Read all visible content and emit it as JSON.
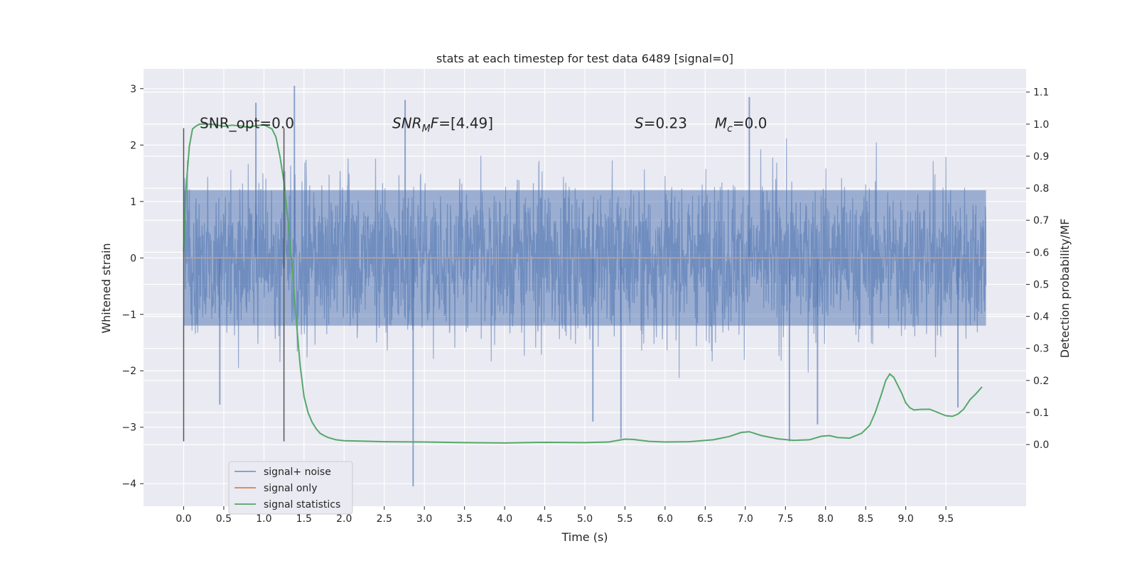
{
  "chart_data": {
    "type": "line",
    "title": "stats at each timestep for test data 6489 [signal=0]",
    "xlabel": "Time (s)",
    "ylabel": "Whitened strain",
    "y2label": "Detection probability/MF",
    "xlim": [
      -0.5,
      10.5
    ],
    "ylim": [
      -4.4,
      3.35
    ],
    "y2lim": [
      -0.1925,
      1.1725
    ],
    "x_ticks": [
      0.0,
      0.5,
      1.0,
      1.5,
      2.0,
      2.5,
      3.0,
      3.5,
      4.0,
      4.5,
      5.0,
      5.5,
      6.0,
      6.5,
      7.0,
      7.5,
      8.0,
      8.5,
      9.0,
      9.5
    ],
    "x_tick_labels": [
      "0.0",
      "0.5",
      "1.0",
      "1.5",
      "2.0",
      "2.5",
      "3.0",
      "3.5",
      "4.0",
      "4.5",
      "5.0",
      "5.5",
      "6.0",
      "6.5",
      "7.0",
      "7.5",
      "8.0",
      "8.5",
      "9.0",
      "9.5"
    ],
    "y_ticks": [
      -4,
      -3,
      -2,
      -1,
      0,
      1,
      2,
      3
    ],
    "y_tick_labels": [
      "−4",
      "−3",
      "−2",
      "−1",
      "0",
      "1",
      "2",
      "3"
    ],
    "y2_ticks": [
      0.0,
      0.1,
      0.2,
      0.3,
      0.4,
      0.5,
      0.6,
      0.7,
      0.8,
      0.9,
      1.0,
      1.1
    ],
    "y2_tick_labels": [
      "0.0",
      "0.1",
      "0.2",
      "0.3",
      "0.4",
      "0.5",
      "0.6",
      "0.7",
      "0.8",
      "0.9",
      "1.0",
      "1.1"
    ],
    "grid": true,
    "legend_position": "lower-left",
    "annotations": [
      {
        "segments": [
          {
            "t": "SNR_opt=0.0",
            "style": "normal"
          }
        ],
        "x": 0.2,
        "y": 2.3
      },
      {
        "segments": [
          {
            "t": "SNR",
            "style": "italic"
          },
          {
            "t": "M",
            "style": "italic-sub"
          },
          {
            "t": "F",
            "style": "italic"
          },
          {
            "t": "=[4.49]",
            "style": "normal"
          }
        ],
        "x": 2.6,
        "y": 2.3
      },
      {
        "segments": [
          {
            "t": "S",
            "style": "italic"
          },
          {
            "t": "=0.23",
            "style": "normal"
          }
        ],
        "x": 5.62,
        "y": 2.3
      },
      {
        "segments": [
          {
            "t": "M",
            "style": "italic"
          },
          {
            "t": "c",
            "style": "italic-sub"
          },
          {
            "t": "=0.0",
            "style": "normal"
          }
        ],
        "x": 6.62,
        "y": 2.3
      }
    ],
    "vlines": [
      {
        "x": 0.0,
        "ymin": -3.25,
        "ymax": 2.3
      },
      {
        "x": 1.25,
        "ymin": -3.25,
        "ymax": 2.3
      }
    ],
    "series": [
      {
        "name": "signal+ noise",
        "axis": "left",
        "color": "#4c72b0",
        "x_range": [
          0.0,
          10.0
        ],
        "typical_envelope": [
          -1.5,
          1.5
        ],
        "spike_extremes": [
          {
            "x": 1.38,
            "y": 3.05
          },
          {
            "x": 2.86,
            "y": -4.05
          },
          {
            "x": 7.05,
            "y": 2.85
          },
          {
            "x": 0.9,
            "y": 2.75
          },
          {
            "x": 2.76,
            "y": 2.8
          },
          {
            "x": 0.45,
            "y": -2.6
          },
          {
            "x": 5.1,
            "y": -2.9
          },
          {
            "x": 5.45,
            "y": -3.2
          },
          {
            "x": 7.55,
            "y": -3.25
          },
          {
            "x": 7.9,
            "y": -2.95
          },
          {
            "x": 9.65,
            "y": -2.65
          }
        ]
      },
      {
        "name": "signal only",
        "axis": "left",
        "color": "#dd8452",
        "x": [
          0.0,
          10.0
        ],
        "y": [
          0.0,
          0.0
        ]
      },
      {
        "name": "signal statistics",
        "axis": "right",
        "color": "#55a868",
        "x": [
          0.0,
          0.03,
          0.07,
          0.11,
          0.16,
          0.2,
          0.3,
          0.4,
          0.5,
          0.6,
          0.7,
          0.8,
          0.9,
          1.0,
          1.1,
          1.15,
          1.2,
          1.25,
          1.3,
          1.35,
          1.4,
          1.45,
          1.5,
          1.55,
          1.6,
          1.65,
          1.7,
          1.75,
          1.8,
          1.9,
          2.0,
          2.2,
          2.5,
          3.0,
          3.5,
          4.0,
          4.5,
          5.0,
          5.3,
          5.5,
          5.6,
          5.8,
          6.0,
          6.3,
          6.6,
          6.8,
          6.95,
          7.05,
          7.2,
          7.4,
          7.6,
          7.8,
          7.95,
          8.05,
          8.15,
          8.3,
          8.45,
          8.55,
          8.62,
          8.7,
          8.75,
          8.8,
          8.85,
          8.9,
          8.95,
          9.0,
          9.05,
          9.1,
          9.2,
          9.3,
          9.4,
          9.5,
          9.58,
          9.65,
          9.72,
          9.8,
          9.88,
          9.95
        ],
        "y": [
          0.6,
          0.8,
          0.93,
          0.985,
          0.995,
          1.0,
          1.0,
          0.998,
          0.993,
          0.997,
          0.995,
          0.99,
          0.995,
          0.998,
          0.985,
          0.96,
          0.9,
          0.82,
          0.7,
          0.56,
          0.4,
          0.25,
          0.15,
          0.1,
          0.07,
          0.05,
          0.035,
          0.028,
          0.022,
          0.015,
          0.012,
          0.011,
          0.009,
          0.008,
          0.006,
          0.005,
          0.007,
          0.006,
          0.008,
          0.017,
          0.016,
          0.01,
          0.008,
          0.009,
          0.015,
          0.025,
          0.038,
          0.04,
          0.028,
          0.018,
          0.013,
          0.015,
          0.026,
          0.028,
          0.022,
          0.02,
          0.035,
          0.06,
          0.1,
          0.16,
          0.2,
          0.22,
          0.21,
          0.185,
          0.16,
          0.13,
          0.115,
          0.108,
          0.11,
          0.11,
          0.1,
          0.09,
          0.088,
          0.095,
          0.11,
          0.14,
          0.16,
          0.18
        ]
      }
    ]
  }
}
